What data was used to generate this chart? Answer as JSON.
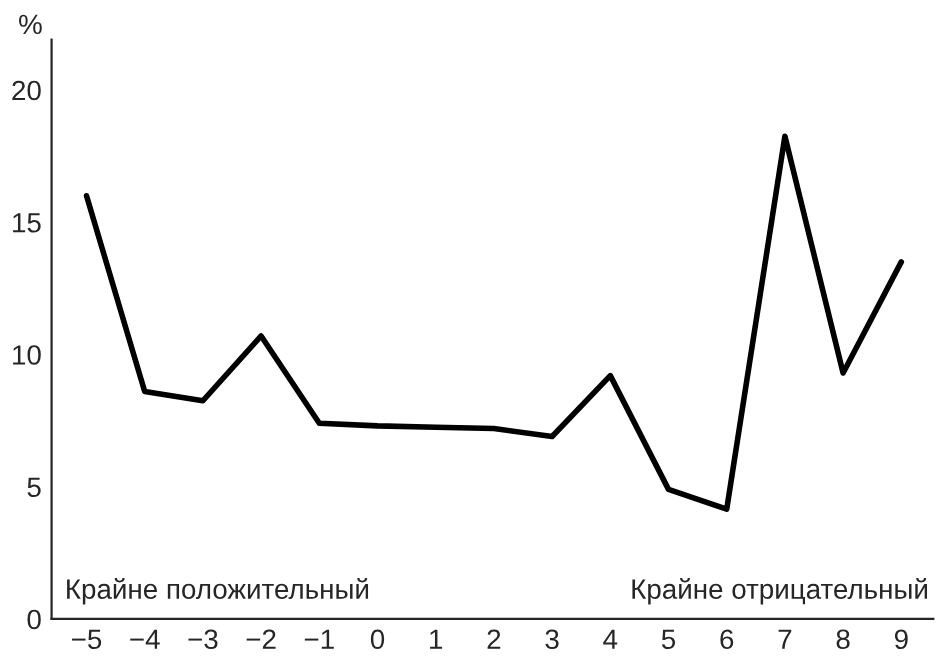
{
  "chart_data": {
    "type": "line",
    "ylabel": "%",
    "x": [
      -5,
      -4,
      -3,
      -2,
      -1,
      0,
      1,
      2,
      3,
      4,
      5,
      6,
      7,
      8,
      9
    ],
    "series": [
      {
        "color": "#000000",
        "values": [
          16.0,
          8.6,
          8.25,
          10.7,
          7.4,
          7.3,
          7.25,
          7.2,
          6.9,
          9.2,
          4.9,
          4.15,
          18.25,
          9.3,
          13.5
        ]
      }
    ],
    "xlim": [
      -5.6,
      9.55
    ],
    "xticks": [
      {
        "value": -5,
        "label": "−5"
      },
      {
        "value": -4,
        "label": "−4"
      },
      {
        "value": -3,
        "label": "−3"
      },
      {
        "value": -2,
        "label": "−2"
      },
      {
        "value": -1,
        "label": "−1"
      },
      0,
      1,
      2,
      3,
      4,
      5,
      6,
      7,
      8,
      9
    ],
    "ylim": [
      0,
      21.9
    ],
    "yticks": [
      0,
      5,
      10,
      15,
      20
    ],
    "annotations": [
      "Крайне положительный",
      "Крайне отрицательный"
    ],
    "grid": false,
    "legend": false,
    "marker": "none",
    "line_style": "solid"
  }
}
